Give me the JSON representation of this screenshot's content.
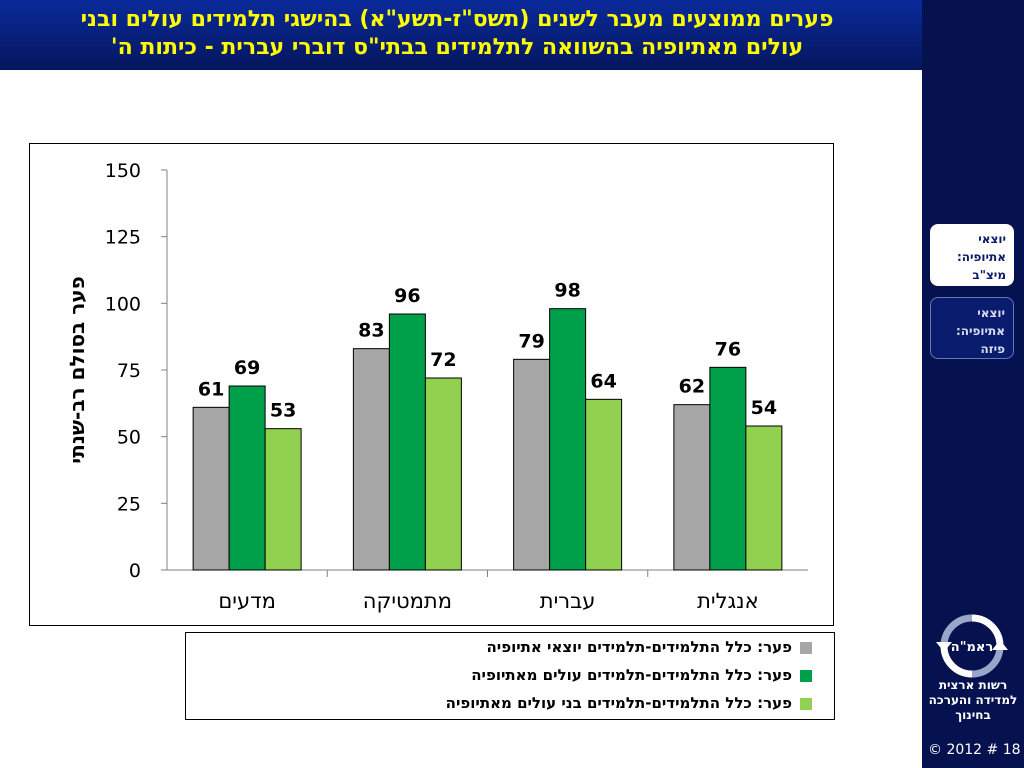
{
  "header": {
    "title_line1": "פערים ממוצעים מעבר לשנים (תשס\"ז-תשע\"א) בהישגי תלמידים עולים ובני",
    "title_line2": "עולים מאתיופיה בהשוואה לתלמידים בבתי\"ס דוברי עברית - כיתות ה'"
  },
  "sidebar": {
    "items": [
      {
        "label": "יוצאי אתיופיה: מיצ\"ב",
        "active": true
      },
      {
        "label": "יוצאי אתיופיה: פיזה",
        "active": false
      }
    ],
    "logo_text": "ראמ\"ה",
    "org_name": "רשות ארצית למדידה והערכה בחינוך",
    "footer": "© 2012 # 18"
  },
  "colors": {
    "header_bg": "#0a2a9a",
    "title": "#ffff00",
    "sidebar_bg": "#06124f"
  },
  "chart_data": {
    "type": "bar",
    "categories": [
      "אנגלית",
      "עברית",
      "מתמטיקה",
      "מדעים"
    ],
    "series": [
      {
        "name": "פער: כלל התלמידים-תלמידים יוצאי אתיופיה",
        "color": "#a6a6a6",
        "values": [
          62,
          79,
          83,
          61
        ]
      },
      {
        "name": "פער: כלל התלמידים-תלמידים עולים מאתיופיה",
        "color": "#00a04a",
        "values": [
          76,
          98,
          96,
          69
        ]
      },
      {
        "name": "פער: כלל התלמידים-תלמידים בני עולים מאתיופיה",
        "color": "#92d050",
        "values": [
          54,
          64,
          72,
          53
        ]
      }
    ],
    "ylabel": "פער בסולם רב-שנתי",
    "ylim": [
      0,
      150
    ],
    "yticks": [
      0,
      25,
      50,
      75,
      100,
      125,
      150
    ],
    "grid": false,
    "legend_position": "bottom"
  }
}
